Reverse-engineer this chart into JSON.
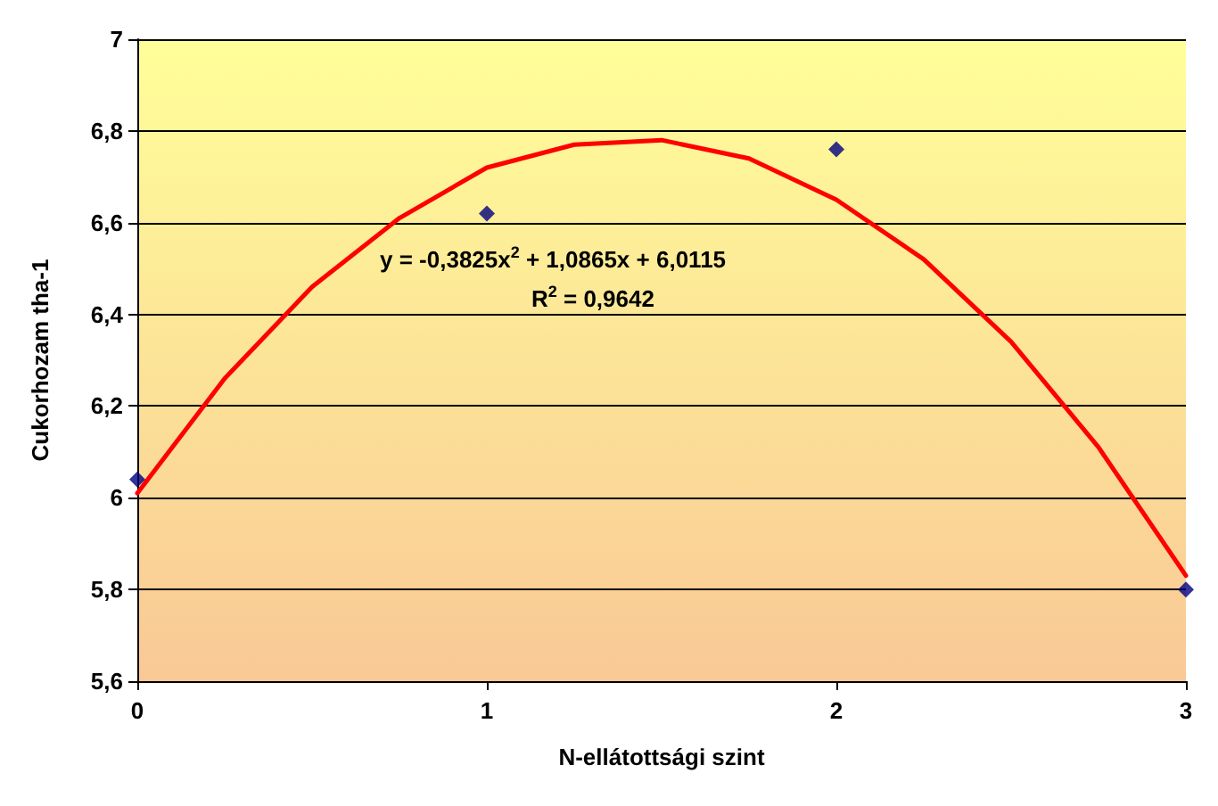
{
  "chart_data": {
    "type": "scatter",
    "xlabel": "N-ellátottsági szint",
    "ylabel": "Cukorhozam tha-1",
    "xlim": [
      0,
      3
    ],
    "xticks": [
      0,
      1,
      2,
      3
    ],
    "ylim": [
      5.6,
      7
    ],
    "yticks": [
      {
        "value": 5.6,
        "label": "5,6"
      },
      {
        "value": 5.8,
        "label": "5,8"
      },
      {
        "value": 6,
        "label": "6"
      },
      {
        "value": 6.2,
        "label": "6,2"
      },
      {
        "value": 6.4,
        "label": "6,4"
      },
      {
        "value": 6.6,
        "label": "6,6"
      },
      {
        "value": 6.8,
        "label": "6,8"
      },
      {
        "value": 7,
        "label": "7"
      }
    ],
    "grid": "y",
    "series": [
      {
        "color": "#000080",
        "marker": "diamond",
        "x": [
          0,
          1,
          2,
          3
        ],
        "values": [
          6.04,
          6.62,
          6.76,
          5.8
        ]
      },
      {
        "type": "line",
        "color": "#ff0000",
        "marker": "none",
        "line_style": "solid",
        "x": [
          0,
          0.25,
          0.5,
          0.75,
          1,
          1.25,
          1.5,
          1.75,
          2,
          2.25,
          2.5,
          2.75,
          3
        ],
        "values": [
          6.01,
          6.26,
          6.46,
          6.61,
          6.72,
          6.77,
          6.78,
          6.74,
          6.65,
          6.52,
          6.34,
          6.11,
          5.83
        ]
      }
    ],
    "annotations": [
      "y = -0,3825x$^{2}$ + 1,0865x + 6,0115",
      "R$^{2}$ = 0,9642"
    ]
  }
}
